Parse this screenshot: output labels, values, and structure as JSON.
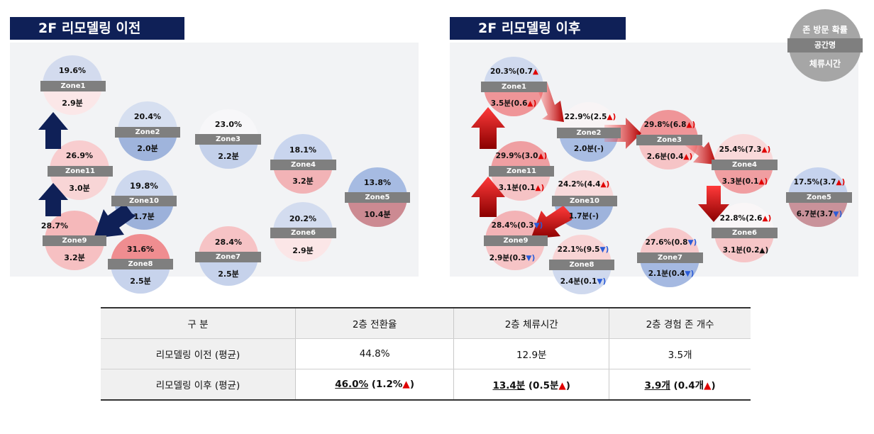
{
  "before": {
    "title": "2F 리모델링 이전",
    "zones": [
      {
        "name": "Zone1",
        "prob": "19.6%",
        "time": "2.9분"
      },
      {
        "name": "Zone2",
        "prob": "20.4%",
        "time": "2.0분"
      },
      {
        "name": "Zone3",
        "prob": "23.0%",
        "time": "2.2분"
      },
      {
        "name": "Zone4",
        "prob": "18.1%",
        "time": "3.2분"
      },
      {
        "name": "Zone5",
        "prob": "13.8%",
        "time": "10.4분"
      },
      {
        "name": "Zone6",
        "prob": "20.2%",
        "time": "2.9분"
      },
      {
        "name": "Zone7",
        "prob": "28.4%",
        "time": "2.5분"
      },
      {
        "name": "Zone8",
        "prob": "31.6%",
        "time": "2.5분"
      },
      {
        "name": "Zone9",
        "prob": "28.7%",
        "time": "3.2분"
      },
      {
        "name": "Zone10",
        "prob": "19.8%",
        "time": "1.7분"
      },
      {
        "name": "Zone11",
        "prob": "26.9%",
        "time": "3.0분"
      }
    ]
  },
  "after": {
    "title": "2F 리모델링 이후",
    "zones": [
      {
        "name": "Zone1",
        "prob": "20.3%(0.7",
        "prob_mark": "▲",
        "time": "3.5분(0.6",
        "time_mark": "▲)"
      },
      {
        "name": "Zone2",
        "prob": "22.9%(2.5",
        "prob_mark": "▲)",
        "time": "2.0분(-)",
        "time_mark": ""
      },
      {
        "name": "Zone3",
        "prob": "29.8%(6.8",
        "prob_mark": "▲)",
        "time": "2.6분(0.4",
        "time_mark": "▲)"
      },
      {
        "name": "Zone4",
        "prob": "25.4%(7.3",
        "prob_mark": "▲)",
        "time": "3.3분(0.1",
        "time_mark": "▲)"
      },
      {
        "name": "Zone5",
        "prob": "17.5%(3.7",
        "prob_mark": "▲)",
        "time": "6.7분(3.7",
        "time_mark": "▼)"
      },
      {
        "name": "Zone6",
        "prob": "22.8%(2.6",
        "prob_mark": "▲)",
        "time": "3.1분(0.2",
        "time_mark": "▲)"
      },
      {
        "name": "Zone7",
        "prob": "27.6%(0.8",
        "prob_mark": "▼)",
        "time": "2.1분(0.4",
        "time_mark": "▼)"
      },
      {
        "name": "Zone8",
        "prob": "22.1%(9.5",
        "prob_mark": "▼)",
        "time": "2.4분(0.1",
        "time_mark": "▼)"
      },
      {
        "name": "Zone9",
        "prob": "28.4%(0.3",
        "prob_mark": "▼)",
        "time": "2.9분(0.3",
        "time_mark": "▼)"
      },
      {
        "name": "Zone10",
        "prob": "24.2%(4.4",
        "prob_mark": "▲)",
        "time": "1.7분(-)",
        "time_mark": ""
      },
      {
        "name": "Zone11",
        "prob": "29.9%(3.0",
        "prob_mark": "▲)",
        "time": "3.1분(0.1",
        "time_mark": "▲)"
      }
    ]
  },
  "legend": {
    "top": "존 방문 확률",
    "middle": "공간명",
    "bottom": "체류시간"
  },
  "table": {
    "headers": [
      "구 분",
      "2층 전환율",
      "2층 체류시간",
      "2층 경험 존 개수"
    ],
    "rows": [
      {
        "label": "리모델링 이전 (평균)",
        "c1": "44.8%",
        "c2": "12.9분",
        "c3": "3.5개"
      },
      {
        "label": "리모델링 이후 (평균)",
        "c1_main": "46.0%",
        "c1_delta": " (1.2%",
        "c1_mark": "▲",
        ")": ")",
        "c2_main": "13.4분",
        "c2_delta": " (0.5분",
        "c2_mark": "▲",
        "c3_main": "3.9개",
        "c3_delta": " (0.4개",
        "c3_mark": "▲"
      }
    ],
    "close_paren": ")"
  },
  "colors": {
    "title_bg": "#0f2057",
    "label_bg": "#7f7f7f",
    "up": "#e00000",
    "down": "#2a5bd7",
    "arrow_before": "#0f2057",
    "arrow_after": "#c00000"
  }
}
